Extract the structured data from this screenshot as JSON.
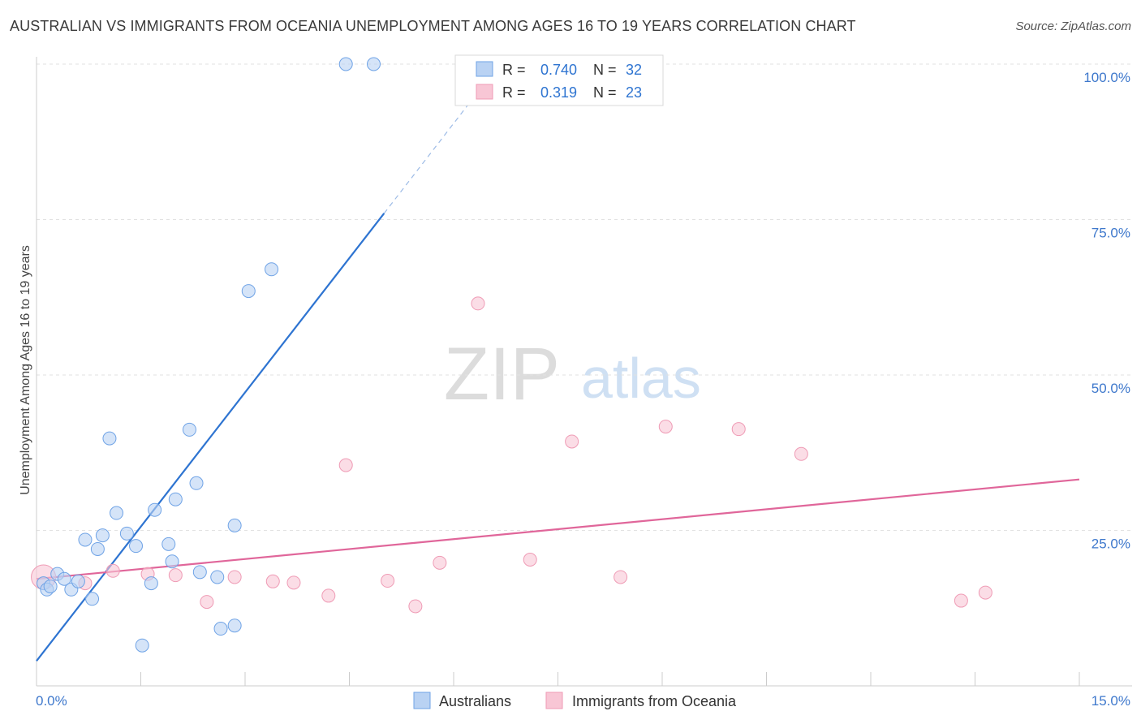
{
  "chart_data": {
    "type": "scatter",
    "title": "AUSTRALIAN VS IMMIGRANTS FROM OCEANIA UNEMPLOYMENT AMONG AGES 16 TO 19 YEARS CORRELATION CHART",
    "source": "Source: ZipAtlas.com",
    "xlabel": "",
    "ylabel": "Unemployment Among Ages 16 to 19 years",
    "xlim": [
      0,
      15
    ],
    "ylim": [
      0,
      102
    ],
    "x_ticks": [
      0,
      1.5,
      3,
      4.5,
      6,
      7.5,
      9,
      10.5,
      12,
      13.5,
      15
    ],
    "x_tick_labels": [
      {
        "value": 0,
        "label": "0.0%",
        "anchor": "start"
      },
      {
        "value": 15,
        "label": "15.0%",
        "anchor": "end"
      }
    ],
    "y_gridlines": [
      25,
      50,
      75,
      100
    ],
    "y_tick_labels": [
      {
        "value": 25,
        "label": "25.0%"
      },
      {
        "value": 50,
        "label": "50.0%"
      },
      {
        "value": 75,
        "label": "75.0%"
      },
      {
        "value": 100,
        "label": "100.0%"
      }
    ],
    "watermark": {
      "part1": "ZIP",
      "part2": "atlas"
    },
    "legend_top": [
      {
        "series": "Australians",
        "r_label": "R =",
        "r_value": "0.740",
        "n_label": "N =",
        "n_value": "32"
      },
      {
        "series": "Immigrants from Oceania",
        "r_label": "R =",
        "r_value": "0.319",
        "n_label": "N =",
        "n_value": "23"
      }
    ],
    "series": [
      {
        "name": "Australians",
        "color": "#6fa3e6",
        "fill": "#b9d2f3",
        "line_color": "#2e74d1",
        "trend": {
          "x0": 0,
          "y0": 4,
          "x1": 5.0,
          "y1": 76,
          "x_dash_end": 6.3,
          "y_dash_end": 94.8
        },
        "points": [
          {
            "x": 0.1,
            "y": 16.5
          },
          {
            "x": 0.15,
            "y": 15.5
          },
          {
            "x": 0.2,
            "y": 16.0
          },
          {
            "x": 0.3,
            "y": 18.0
          },
          {
            "x": 0.4,
            "y": 17.2
          },
          {
            "x": 0.5,
            "y": 15.5
          },
          {
            "x": 0.6,
            "y": 16.8
          },
          {
            "x": 0.7,
            "y": 23.5
          },
          {
            "x": 0.8,
            "y": 14.0
          },
          {
            "x": 0.88,
            "y": 22.0
          },
          {
            "x": 0.95,
            "y": 24.2
          },
          {
            "x": 1.05,
            "y": 39.8
          },
          {
            "x": 1.15,
            "y": 27.8
          },
          {
            "x": 1.3,
            "y": 24.5
          },
          {
            "x": 1.43,
            "y": 22.5
          },
          {
            "x": 1.52,
            "y": 6.5
          },
          {
            "x": 1.65,
            "y": 16.5
          },
          {
            "x": 1.7,
            "y": 28.3
          },
          {
            "x": 1.9,
            "y": 22.8
          },
          {
            "x": 1.95,
            "y": 20.0
          },
          {
            "x": 2.0,
            "y": 30.0
          },
          {
            "x": 2.2,
            "y": 41.2
          },
          {
            "x": 2.3,
            "y": 32.6
          },
          {
            "x": 2.35,
            "y": 18.3
          },
          {
            "x": 2.6,
            "y": 17.5
          },
          {
            "x": 2.65,
            "y": 9.2
          },
          {
            "x": 2.85,
            "y": 25.8
          },
          {
            "x": 2.85,
            "y": 9.7
          },
          {
            "x": 3.05,
            "y": 63.5
          },
          {
            "x": 3.38,
            "y": 67.0
          },
          {
            "x": 4.45,
            "y": 100.0
          },
          {
            "x": 4.85,
            "y": 100.0
          }
        ]
      },
      {
        "name": "Immigrants from Oceania",
        "color": "#ef9bb5",
        "fill": "#f8c6d5",
        "line_color": "#e0669a",
        "trend": {
          "x0": 0,
          "y0": 17.2,
          "x1": 15,
          "y1": 33.2
        },
        "points": [
          {
            "x": 0.1,
            "y": 17.5,
            "size": "large"
          },
          {
            "x": 0.7,
            "y": 16.5
          },
          {
            "x": 1.1,
            "y": 18.5
          },
          {
            "x": 1.6,
            "y": 18.0
          },
          {
            "x": 2.0,
            "y": 17.8
          },
          {
            "x": 2.45,
            "y": 13.5
          },
          {
            "x": 2.85,
            "y": 17.5
          },
          {
            "x": 3.4,
            "y": 16.8
          },
          {
            "x": 3.7,
            "y": 16.6
          },
          {
            "x": 4.2,
            "y": 14.5
          },
          {
            "x": 4.45,
            "y": 35.5
          },
          {
            "x": 5.05,
            "y": 16.9
          },
          {
            "x": 5.45,
            "y": 12.8
          },
          {
            "x": 5.8,
            "y": 19.8
          },
          {
            "x": 6.35,
            "y": 61.5
          },
          {
            "x": 7.1,
            "y": 20.3
          },
          {
            "x": 7.7,
            "y": 39.3
          },
          {
            "x": 8.4,
            "y": 17.5
          },
          {
            "x": 9.05,
            "y": 41.7
          },
          {
            "x": 10.1,
            "y": 41.3
          },
          {
            "x": 11.0,
            "y": 37.3
          },
          {
            "x": 13.3,
            "y": 13.7
          },
          {
            "x": 13.65,
            "y": 15.0
          }
        ]
      }
    ],
    "legend_bottom": [
      {
        "label": "Australians"
      },
      {
        "label": "Immigrants from Oceania"
      }
    ]
  }
}
